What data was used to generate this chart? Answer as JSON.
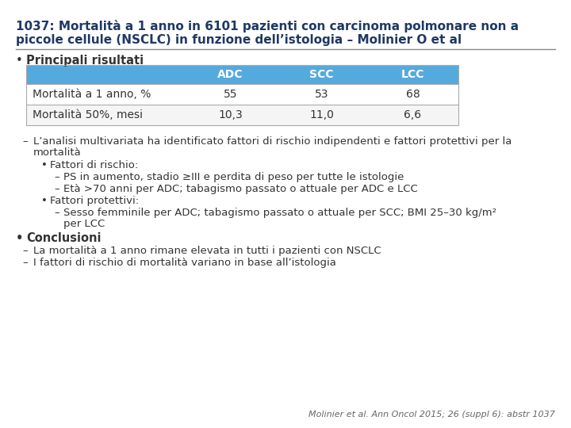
{
  "title_line1": "1037: Mortalità a 1 anno in 6101 pazienti con carcinoma polmonare non a",
  "title_line2": "piccole cellule (NSCLC) in funzione dell’istologia – Molinier O et al",
  "bg_color": "#ffffff",
  "title_color": "#1f3864",
  "table_header_bg": "#55aadd",
  "table_header_text": "#ffffff",
  "table_row1_bg": "#ffffff",
  "table_row2_bg": "#f5f5f5",
  "table_border_color": "#aaaaaa",
  "table_headers": [
    "",
    "ADC",
    "SCC",
    "LCC"
  ],
  "table_row1": [
    "Mortalità a 1 anno, %",
    "55",
    "53",
    "68"
  ],
  "table_row2": [
    "Mortalità 50%, mesi",
    "10,3",
    "11,0",
    "6,6"
  ],
  "bullet1": "Principali risultati",
  "dash1_line1": "L’analisi multivariata ha identificato fattori di rischio indipendenti e fattori protettivi per la",
  "dash1_line2": "mortalità",
  "sub_bullet1": "Fattori di rischio:",
  "sub_dash1": "PS in aumento, stadio ≥III e perdita di peso per tutte le istologie",
  "sub_dash2": "Età >70 anni per ADC; tabagismo passato o attuale per ADC e LCC",
  "sub_bullet2": "Fattori protettivi:",
  "sub_dash3_line1": "Sesso femminile per ADC; tabagismo passato o attuale per SCC; BMI 25–30 kg/m²",
  "sub_dash3_line2": "per LCC",
  "bullet2_bold": "Conclusioni",
  "conc_dash1": "La mortalità a 1 anno rimane elevata in tutti i pazienti con NSCLC",
  "conc_dash2": "I fattori di rischio di mortalità variano in base all’istologia",
  "footer": "Molinier et al. Ann Oncol 2015; 26 (suppl 6): abstr 1037",
  "text_color": "#333333",
  "footer_color": "#666666"
}
